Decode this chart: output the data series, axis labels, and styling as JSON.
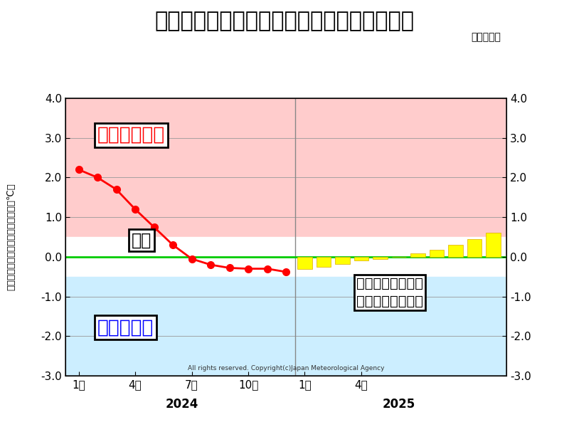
{
  "title": "エルニーニョ／ラニーニャ現象の経過と予測",
  "subtitle": "（気象庁）",
  "ylabel_chars": [
    "監",
    "視",
    "海",
    "域",
    "の",
    "海",
    "面",
    "水",
    "温",
    "と",
    "基",
    "準",
    "値",
    "の",
    "差",
    "（",
    "℃",
    "）"
  ],
  "ylabel_left": "監視海域の海面水温と基準値の差（℃）",
  "copyright": "All rights reserved. Copyright(c)Japan Meteorological Agency",
  "ylim": [
    -3.0,
    4.0
  ],
  "yticks": [
    -3.0,
    -2.0,
    -1.0,
    0.0,
    1.0,
    2.0,
    3.0,
    4.0
  ],
  "el_nino_threshold": 0.5,
  "la_nina_threshold": -0.5,
  "background_white": "#ffffff",
  "el_nino_color": "#ffcccc",
  "la_nina_color": "#cceeff",
  "line_color": "#ff0000",
  "bar_color": "#ffff00",
  "zero_line_color": "#00cc00",
  "observed_x": [
    1,
    2,
    3,
    4,
    5,
    6,
    7,
    8,
    9,
    10,
    11,
    12
  ],
  "observed_y": [
    2.2,
    2.0,
    1.7,
    1.2,
    0.75,
    0.3,
    -0.05,
    -0.2,
    -0.28,
    -0.3,
    -0.3,
    -0.38
  ],
  "forecast_x": [
    13,
    14,
    15,
    16,
    17,
    18,
    19,
    20,
    21,
    22,
    23
  ],
  "forecast_y": [
    -0.3,
    -0.25,
    -0.18,
    -0.1,
    -0.05,
    0.0,
    0.08,
    0.18,
    0.3,
    0.45,
    0.6
  ],
  "xtick_positions": [
    1,
    4,
    7,
    10,
    13,
    16,
    19,
    22
  ],
  "xtick_labels_2024": [
    "1月",
    "4月",
    "7月",
    "10月"
  ],
  "xtick_labels_2025": [
    "1月",
    "4月"
  ],
  "vline_2025": 12.5,
  "label_el_nino": "エルニーニョ",
  "label_la_nina": "ラニーニャ",
  "label_normal": "平常",
  "annotation_line1": "ラニーニャ現象に",
  "annotation_line2": "近い状態は解消へ",
  "title_fontsize": 22,
  "tick_fontsize": 11,
  "marker_size": 7,
  "line_width": 2.0
}
